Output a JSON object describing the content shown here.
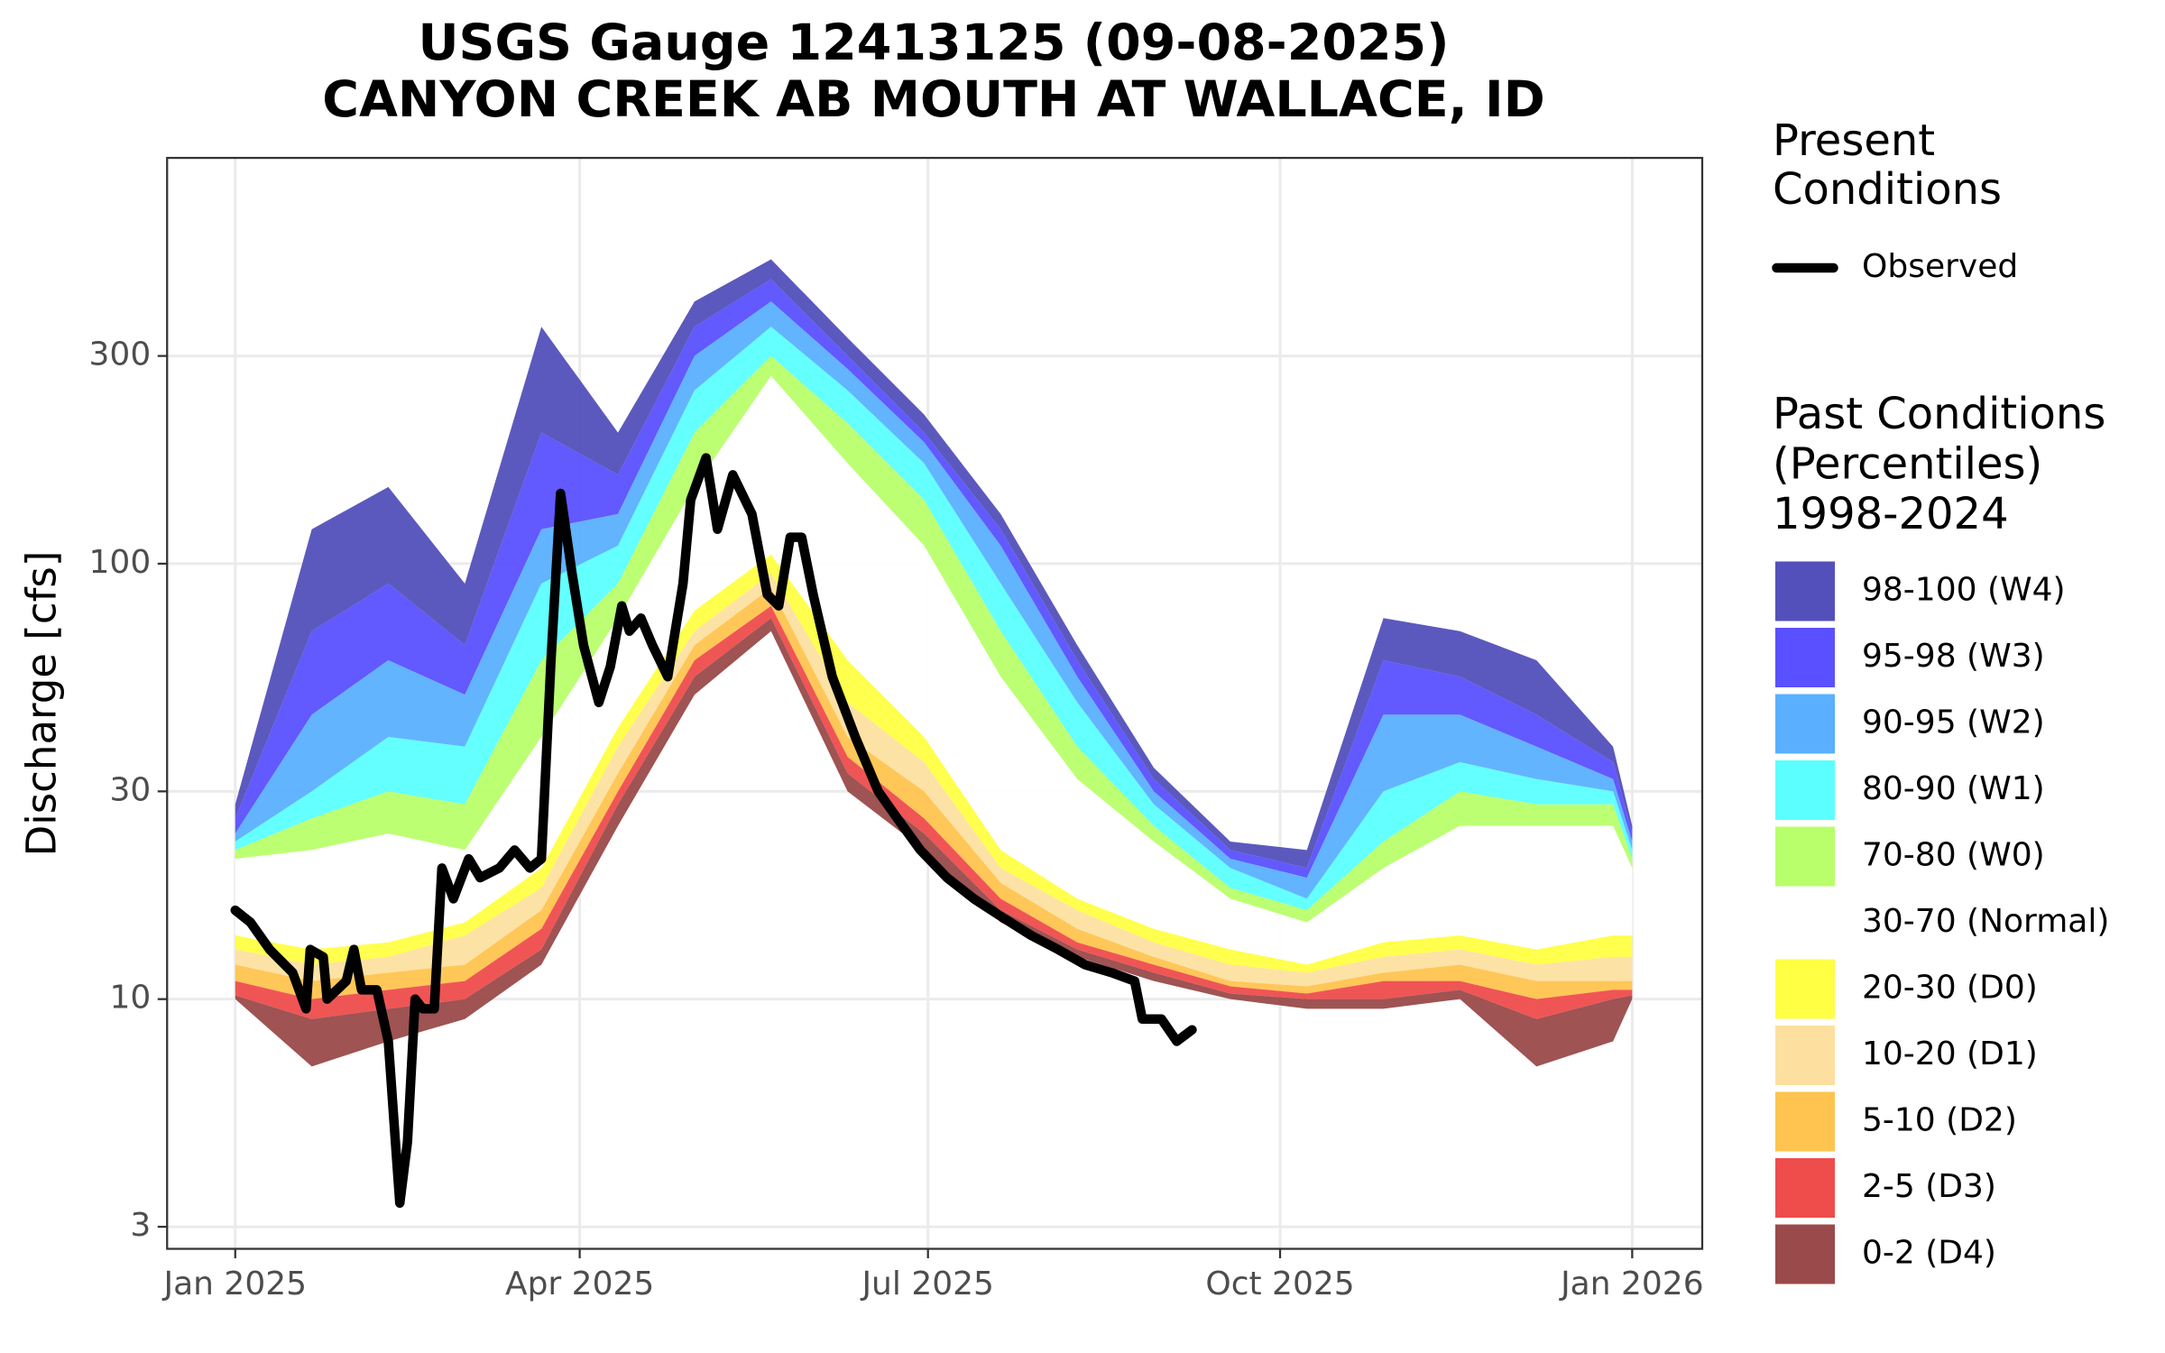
{
  "chart_data": {
    "type": "area",
    "title": [
      "USGS Gauge 12413125 (09-08-2025)",
      "CANYON CREEK AB MOUTH AT WALLACE, ID"
    ],
    "y_label": "Discharge [cfs]",
    "log_y": true,
    "grid": true,
    "xlim": [
      -17.8,
      383.3
    ],
    "ylim": [
      2.67,
      855
    ],
    "xticks": [
      {
        "value": 0,
        "label": "Jan 2025"
      },
      {
        "value": 90,
        "label": "Apr 2025"
      },
      {
        "value": 181,
        "label": "Jul 2025"
      },
      {
        "value": 273,
        "label": "Oct 2025"
      },
      {
        "value": 365,
        "label": "Jan 2026"
      }
    ],
    "yticks": [
      3,
      10,
      30,
      100,
      300
    ],
    "legend_present_title": [
      "Present",
      "Conditions"
    ],
    "legend_past_title": [
      "Past Conditions",
      "(Percentiles)",
      "1998-2024"
    ],
    "band_x": [
      0,
      20,
      40,
      60,
      80,
      100,
      120,
      140,
      160,
      180,
      200,
      220,
      240,
      260,
      280,
      300,
      320,
      340,
      360,
      365
    ],
    "bands": [
      {
        "name": "98-100 (W4)",
        "color": "#5350bb",
        "low": [
          26,
          70,
          90,
          65,
          200,
          160,
          350,
          450,
          300,
          200,
          120,
          60,
          32,
          22,
          20,
          60,
          55,
          45,
          35,
          24
        ],
        "high": [
          28,
          120,
          150,
          90,
          350,
          200,
          400,
          500,
          330,
          220,
          130,
          65,
          34,
          23,
          22,
          75,
          70,
          60,
          38,
          25
        ]
      },
      {
        "name": "95-98 (W3)",
        "color": "#5a50ff",
        "low": [
          24,
          45,
          60,
          50,
          120,
          130,
          300,
          400,
          280,
          190,
          110,
          55,
          30,
          21,
          19,
          45,
          45,
          38,
          32,
          23
        ],
        "high": [
          26,
          70,
          90,
          65,
          200,
          160,
          350,
          450,
          300,
          200,
          120,
          60,
          32,
          22,
          20,
          60,
          55,
          45,
          35,
          24
        ]
      },
      {
        "name": "90-95 (W2)",
        "color": "#5ab0ff",
        "low": [
          23,
          30,
          40,
          38,
          90,
          110,
          250,
          350,
          250,
          170,
          90,
          48,
          28,
          20,
          17,
          30,
          35,
          32,
          30,
          22
        ],
        "high": [
          24,
          45,
          60,
          50,
          120,
          130,
          300,
          400,
          280,
          190,
          110,
          55,
          30,
          21,
          19,
          45,
          45,
          38,
          32,
          23
        ]
      },
      {
        "name": "80-90 (W1)",
        "color": "#5cffff",
        "low": [
          22,
          26,
          30,
          28,
          60,
          90,
          200,
          300,
          210,
          140,
          70,
          38,
          25,
          18,
          16,
          23,
          30,
          28,
          28,
          21
        ],
        "high": [
          23,
          30,
          40,
          38,
          90,
          110,
          250,
          350,
          250,
          170,
          90,
          48,
          28,
          20,
          17,
          30,
          35,
          32,
          30,
          22
        ]
      },
      {
        "name": "70-80 (W0)",
        "color": "#b8ff6b",
        "low": [
          21,
          22,
          24,
          22,
          40,
          75,
          150,
          270,
          170,
          110,
          55,
          32,
          23,
          17,
          15,
          20,
          25,
          25,
          25,
          20
        ],
        "high": [
          22,
          26,
          30,
          28,
          60,
          90,
          200,
          300,
          210,
          140,
          70,
          38,
          25,
          18,
          16,
          23,
          30,
          28,
          28,
          21
        ]
      },
      {
        "name": "30-70 (Normal)",
        "color": "#ffffff",
        "low": [
          14,
          13,
          13.5,
          15,
          20,
          42,
          78,
          105,
          60,
          40,
          22,
          17,
          14.5,
          13,
          12,
          13.5,
          14,
          13,
          14,
          14
        ],
        "high": [
          21,
          22,
          24,
          22,
          40,
          75,
          150,
          270,
          170,
          110,
          55,
          32,
          23,
          17,
          15,
          20,
          25,
          25,
          25,
          20
        ]
      },
      {
        "name": "20-30 (D0)",
        "color": "#ffff44",
        "low": [
          13,
          12,
          12.5,
          14,
          18,
          38,
          70,
          95,
          48,
          35,
          20,
          16,
          13.5,
          12,
          11.5,
          12.5,
          13,
          12,
          12.5,
          12.5
        ],
        "high": [
          14,
          13,
          13.5,
          15,
          20,
          42,
          78,
          105,
          60,
          40,
          22,
          17,
          14.5,
          13,
          12,
          13.5,
          14,
          13,
          14,
          14
        ]
      },
      {
        "name": "10-20 (D1)",
        "color": "#fde0a0",
        "low": [
          12,
          11,
          11.5,
          12,
          16,
          33,
          65,
          88,
          40,
          30,
          18.5,
          14.5,
          12.5,
          11,
          10.7,
          11.5,
          12,
          11,
          11,
          11
        ],
        "high": [
          13,
          12,
          12.5,
          14,
          18,
          38,
          70,
          95,
          48,
          35,
          20,
          16,
          13.5,
          12,
          11.5,
          12.5,
          13,
          12,
          12.5,
          12.5
        ]
      },
      {
        "name": "5-10 (D2)",
        "color": "#fec44f",
        "low": [
          11,
          10,
          10.5,
          11,
          14.5,
          30,
          60,
          80,
          36,
          26,
          17,
          13.5,
          12,
          10.7,
          10.3,
          11,
          11,
          10,
          10.5,
          10.5
        ],
        "high": [
          12,
          11,
          11.5,
          12,
          16,
          33,
          65,
          88,
          40,
          30,
          18.5,
          14.5,
          12.5,
          11,
          10.7,
          11.5,
          12,
          11,
          11,
          11
        ]
      },
      {
        "name": "2-5 (D3)",
        "color": "#ef4c4c",
        "low": [
          10.2,
          9,
          9.5,
          10,
          13,
          28,
          55,
          75,
          33,
          24,
          16,
          13,
          11.5,
          10.3,
          10,
          10,
          10.5,
          9,
          10,
          10.2
        ],
        "high": [
          11,
          10,
          10.5,
          11,
          14.5,
          30,
          60,
          80,
          36,
          26,
          17,
          13.5,
          12,
          10.7,
          10.3,
          11,
          11,
          10,
          10.5,
          10.5
        ]
      },
      {
        "name": "0-2 (D4)",
        "color": "#9a4a4a",
        "low": [
          10,
          7,
          8,
          9,
          12,
          25,
          50,
          70,
          30,
          22,
          15,
          12.5,
          11,
          10,
          9.5,
          9.5,
          10,
          7,
          8,
          10
        ],
        "high": [
          10.2,
          9,
          9.5,
          10,
          13,
          28,
          55,
          75,
          33,
          24,
          16,
          13,
          11.5,
          10.3,
          10,
          10,
          10.5,
          9,
          10,
          10.2
        ]
      }
    ],
    "series": [
      {
        "name": "Observed",
        "color": "#000000",
        "x": [
          0,
          4,
          9,
          15,
          18.5,
          19.6,
          23,
          24,
          29,
          31,
          33,
          37,
          40,
          42,
          43,
          45,
          47,
          49,
          52,
          54,
          57,
          61,
          64,
          69,
          73,
          77,
          80,
          82.5,
          85,
          88,
          91,
          95,
          98,
          101,
          103,
          106,
          109,
          113,
          117,
          119,
          123,
          126,
          130,
          135,
          139,
          142,
          145,
          148,
          151,
          156,
          162,
          168,
          173,
          179,
          186,
          193,
          200,
          208,
          215,
          222,
          229,
          235,
          237,
          242,
          246,
          250
        ],
        "values": [
          16,
          15,
          13,
          11.5,
          9.5,
          13,
          12.5,
          10,
          11,
          13,
          10.5,
          10.5,
          8,
          4.5,
          3.4,
          4.7,
          10,
          9.5,
          9.5,
          20,
          17,
          21,
          19,
          20,
          22,
          20,
          21,
          60,
          145,
          95,
          65,
          48,
          58,
          80,
          70,
          75,
          65,
          55,
          90,
          140,
          175,
          120,
          160,
          130,
          85,
          80,
          115,
          115,
          85,
          55,
          40,
          30,
          26,
          22,
          19,
          17,
          15.5,
          14,
          13,
          12,
          11.5,
          11,
          9,
          9,
          8,
          8.5
        ]
      }
    ]
  }
}
